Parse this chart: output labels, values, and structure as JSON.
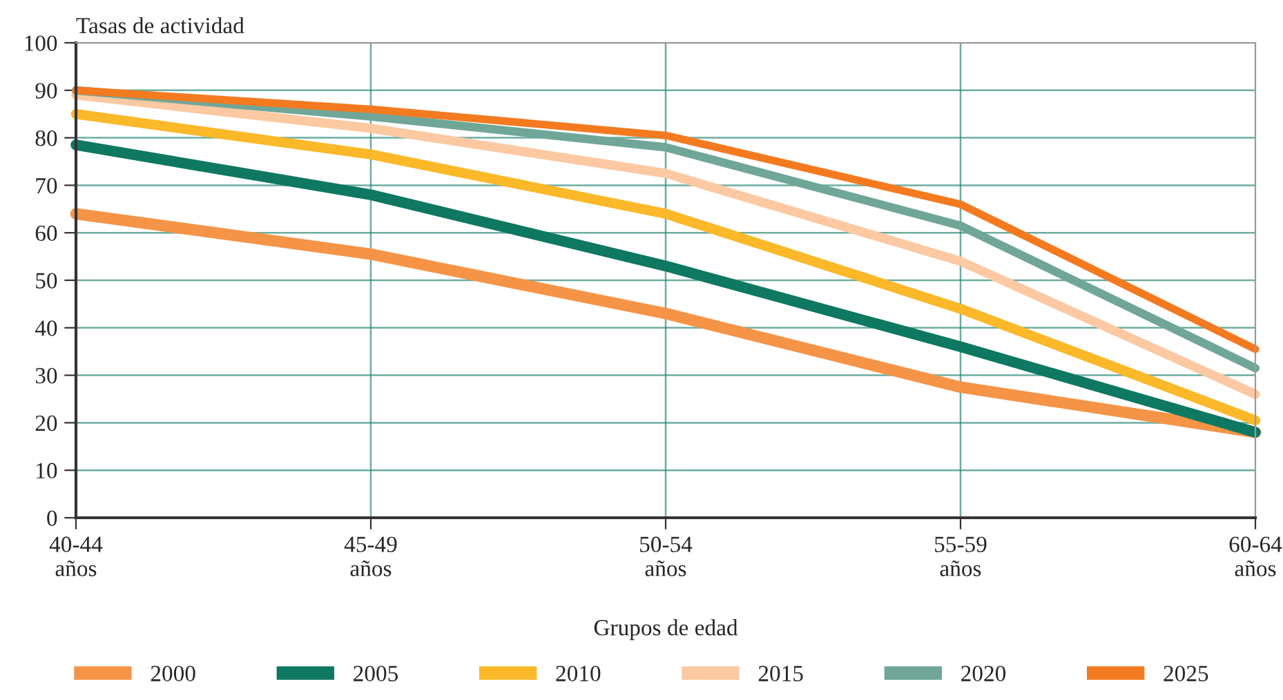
{
  "chart_data": {
    "type": "line",
    "xlabel": "Grupos de edad",
    "ylabel": "Tasas de actividad",
    "categories": [
      "40-44\naños",
      "45-49\naños",
      "50-54\naños",
      "55-59\naños",
      "60-64\naños"
    ],
    "ylim": [
      0,
      100
    ],
    "yticks": [
      0,
      10,
      20,
      30,
      40,
      50,
      60,
      70,
      80,
      90,
      100
    ],
    "grid": true,
    "legend": "bottom",
    "marker": "none",
    "line_style": "solid",
    "series": [
      {
        "name": "2000",
        "color": "#f59447",
        "values": [
          64,
          55.5,
          43,
          27.5,
          18
        ]
      },
      {
        "name": "2005",
        "color": "#0e7862",
        "values": [
          78.5,
          68,
          53,
          36,
          18
        ]
      },
      {
        "name": "2010",
        "color": "#fbb829",
        "values": [
          85,
          76.5,
          64,
          44,
          20.5
        ]
      },
      {
        "name": "2015",
        "color": "#fcc9a2",
        "values": [
          89,
          82,
          72.5,
          54,
          26
        ]
      },
      {
        "name": "2020",
        "color": "#6fa698",
        "values": [
          90,
          84.5,
          78,
          61.5,
          31.5
        ]
      },
      {
        "name": "2025",
        "color": "#f47a20",
        "values": [
          90,
          86,
          80.5,
          66,
          35.5
        ]
      }
    ]
  }
}
